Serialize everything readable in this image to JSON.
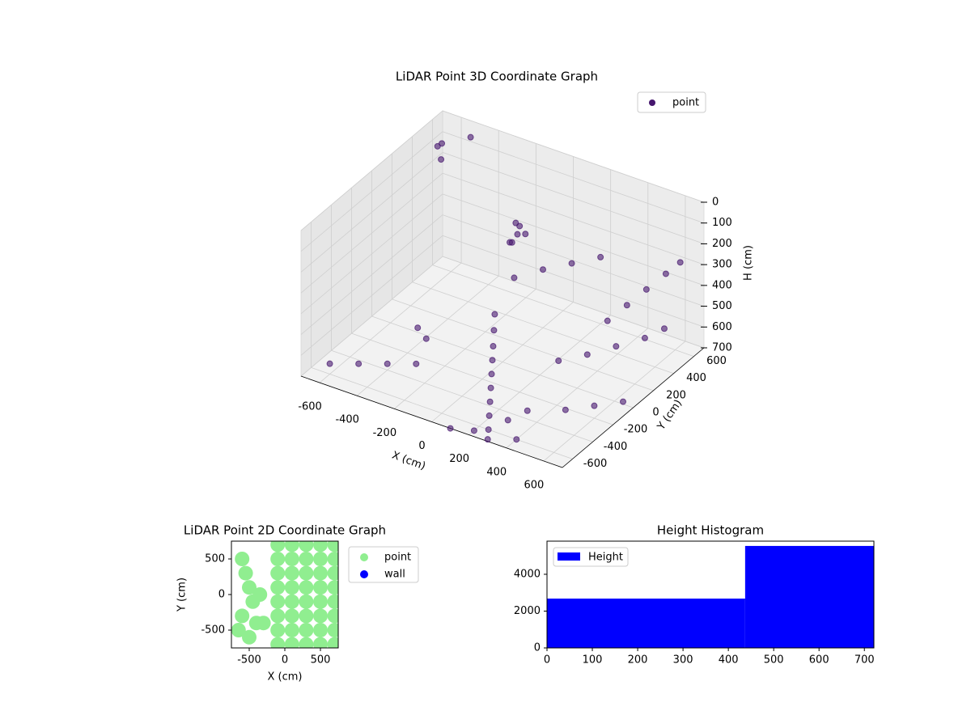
{
  "chart_data": [
    {
      "type": "scatter3d",
      "title": "LiDAR Point 3D Coordinate Graph",
      "x_label": "X (cm)",
      "y_label": "Y (cm)",
      "z_label": "H (cm)",
      "xlim": [
        -700,
        700
      ],
      "ylim": [
        -700,
        700
      ],
      "zlim": [
        0,
        700
      ],
      "z_inverted": true,
      "grid": true,
      "xticks": [
        -600,
        -400,
        -200,
        0,
        200,
        400,
        600
      ],
      "yticks": [
        -600,
        -400,
        -200,
        0,
        200,
        400,
        600
      ],
      "zticks": [
        0,
        100,
        200,
        300,
        400,
        500,
        600,
        700
      ],
      "legend": "upper right",
      "series": [
        {
          "name": "point",
          "color": "#46166e",
          "x": [
            -200,
            -190,
            -180,
            -170,
            -210,
            -220,
            -150,
            -100,
            -50,
            0,
            50,
            100,
            150,
            200,
            250,
            300,
            350,
            400,
            450,
            500,
            550,
            600,
            -600,
            -500,
            -400,
            -300,
            -650,
            -550,
            300,
            400,
            500,
            600,
            650,
            100,
            0,
            -100,
            200,
            -300,
            -400,
            500,
            600,
            700,
            -700,
            -600,
            100,
            200,
            300,
            400
          ],
          "y": [
            500,
            520,
            480,
            540,
            460,
            500,
            200,
            100,
            0,
            -100,
            -200,
            -300,
            -400,
            -500,
            -600,
            -500,
            -400,
            300,
            400,
            500,
            600,
            650,
            -600,
            -500,
            -400,
            -300,
            600,
            700,
            0,
            100,
            200,
            300,
            400,
            500,
            400,
            300,
            600,
            -200,
            -100,
            -300,
            -200,
            -100,
            650,
            500,
            -700,
            -650,
            -700,
            -600
          ],
          "z": [
            300,
            320,
            340,
            360,
            380,
            400,
            600,
            620,
            640,
            650,
            660,
            670,
            680,
            690,
            700,
            680,
            660,
            500,
            450,
            400,
            350,
            300,
            650,
            660,
            670,
            680,
            100,
            80,
            600,
            580,
            550,
            520,
            500,
            400,
            420,
            450,
            380,
            600,
            620,
            650,
            640,
            630,
            150,
            120,
            700,
            700,
            690,
            700
          ]
        }
      ]
    },
    {
      "type": "scatter",
      "title": "LiDAR Point 2D Coordinate Graph",
      "x_label": "X (cm)",
      "y_label": "Y (cm)",
      "xlim": [
        -750,
        750
      ],
      "ylim": [
        -750,
        750
      ],
      "xticks": [
        -500,
        0,
        500
      ],
      "yticks": [
        -500,
        0,
        500
      ],
      "legend": "outside right",
      "series": [
        {
          "name": "point",
          "color": "#90ee90",
          "x": [
            -600,
            -550,
            -500,
            -450,
            -600,
            -400,
            -650,
            -500,
            -350,
            -300,
            -100,
            -100,
            -100,
            -100,
            -100,
            -100,
            -100,
            -100,
            100,
            100,
            100,
            100,
            100,
            100,
            100,
            100,
            300,
            300,
            300,
            300,
            300,
            300,
            300,
            300,
            500,
            500,
            500,
            500,
            500,
            500,
            500,
            500,
            700,
            700,
            700,
            700,
            700,
            700,
            700,
            700
          ],
          "y": [
            500,
            300,
            100,
            -100,
            -300,
            -400,
            -500,
            -600,
            0,
            -400,
            -700,
            -500,
            -300,
            -100,
            100,
            300,
            500,
            700,
            -700,
            -500,
            -300,
            -100,
            100,
            300,
            500,
            700,
            -700,
            -500,
            -300,
            -100,
            100,
            300,
            500,
            700,
            -700,
            -500,
            -300,
            -100,
            100,
            300,
            500,
            700,
            -700,
            -500,
            -300,
            -100,
            100,
            300,
            500,
            700
          ]
        },
        {
          "name": "wall",
          "color": "#0000ff",
          "x": [],
          "y": []
        }
      ]
    },
    {
      "type": "histogram",
      "title": "Height Histogram",
      "xlim": [
        0,
        721
      ],
      "ylim": [
        0,
        5800
      ],
      "xticks": [
        0,
        100,
        200,
        300,
        400,
        500,
        600,
        700
      ],
      "yticks": [
        0,
        2000,
        4000
      ],
      "bins": [
        0,
        437,
        721
      ],
      "legend": "upper left",
      "series": [
        {
          "name": "Height",
          "color": "#0000ff",
          "values": [
            2680,
            5540
          ]
        }
      ]
    }
  ]
}
